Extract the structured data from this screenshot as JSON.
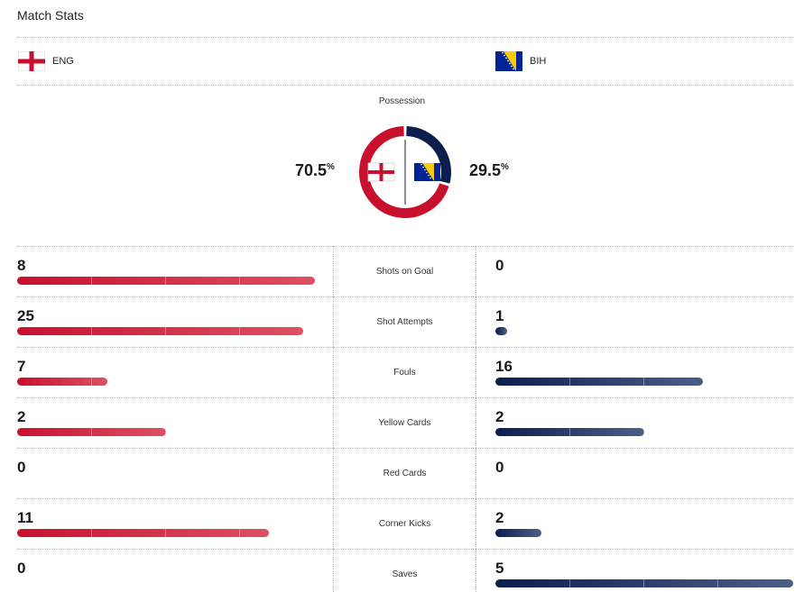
{
  "header": {
    "title": "Match Stats"
  },
  "teams": {
    "home": {
      "code": "ENG",
      "flag_icon": "england-flag-icon",
      "color": "#c8102e"
    },
    "away": {
      "code": "BIH",
      "flag_icon": "bosnia-flag-icon",
      "color": "#0b1f4f"
    }
  },
  "possession": {
    "label": "Possession",
    "home": 70.5,
    "away": 29.5,
    "home_text": "70.5",
    "away_text": "29.5",
    "unit": "%"
  },
  "stats": [
    {
      "label": "Shots on Goal",
      "home": 8,
      "away": 0
    },
    {
      "label": "Shot Attempts",
      "home": 25,
      "away": 1
    },
    {
      "label": "Fouls",
      "home": 7,
      "away": 16
    },
    {
      "label": "Yellow Cards",
      "home": 2,
      "away": 2
    },
    {
      "label": "Red Cards",
      "home": 0,
      "away": 0
    },
    {
      "label": "Corner Kicks",
      "home": 11,
      "away": 2
    },
    {
      "label": "Saves",
      "home": 0,
      "away": 5
    }
  ]
}
